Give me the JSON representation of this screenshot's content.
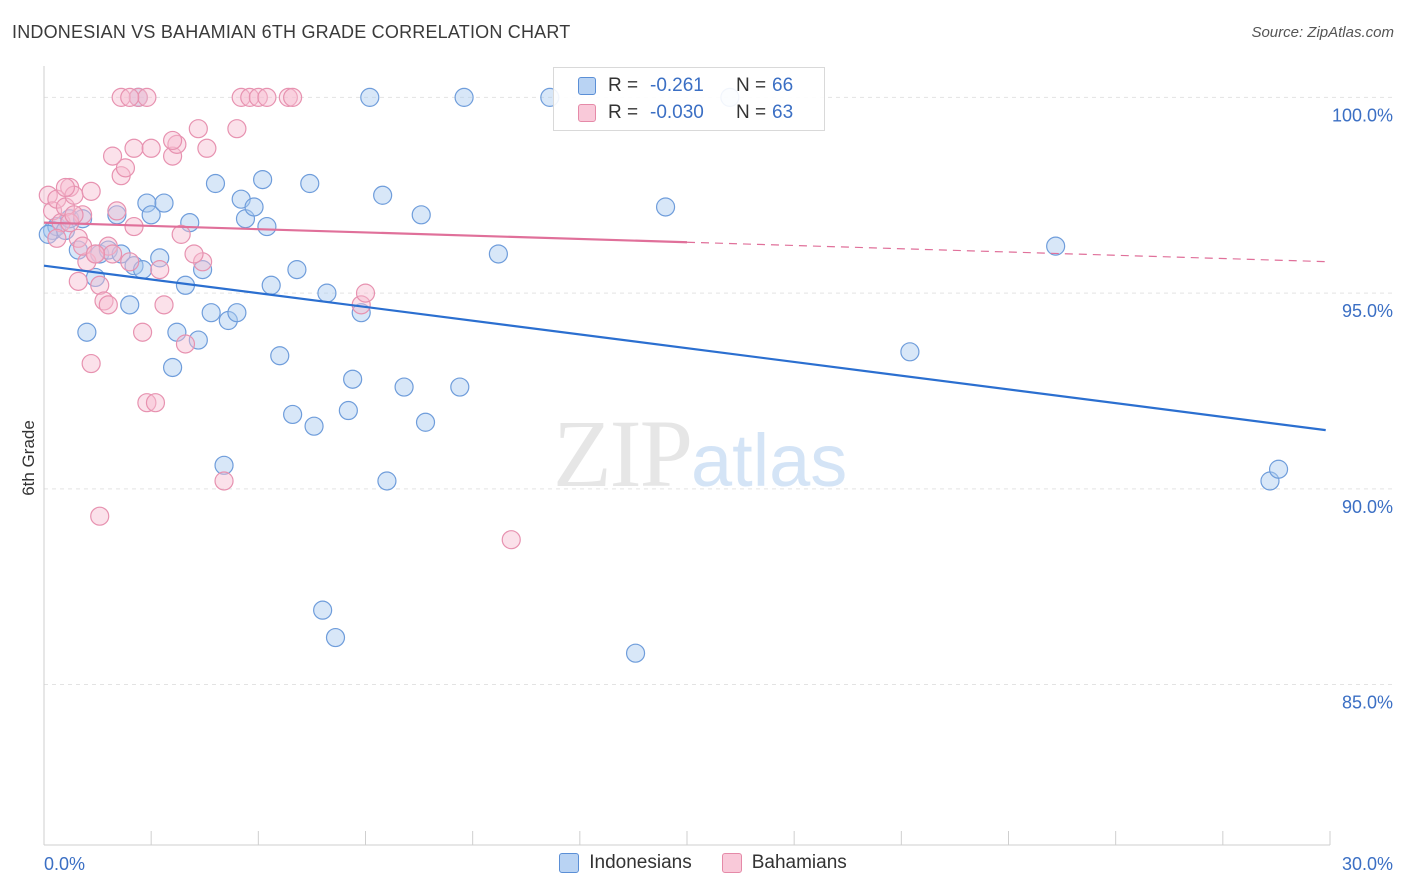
{
  "title": "INDONESIAN VS BAHAMIAN 6TH GRADE CORRELATION CHART",
  "source": "Source: ZipAtlas.com",
  "watermark": {
    "zip": "ZIP",
    "atlas": "atlas"
  },
  "legend": {
    "rows": [
      {
        "r_label": "R =",
        "r_value": "-0.261",
        "n_label": "N =",
        "n_value": "66"
      },
      {
        "r_label": "R =",
        "r_value": "-0.030",
        "n_label": "N =",
        "n_value": "63"
      }
    ]
  },
  "colors": {
    "blue_fill": "#a9c9f0",
    "blue_stroke": "#5b8fd6",
    "blue_line": "#2b6fd0",
    "pink_fill": "#f7bcd0",
    "pink_stroke": "#e58aa8",
    "pink_line": "#e0709a",
    "value_text": "#3b6fc4",
    "grid": "#e3e3e3"
  },
  "chart_data": {
    "type": "scatter",
    "title": "INDONESIAN VS BAHAMIAN 6TH GRADE CORRELATION CHART",
    "xlabel": "",
    "ylabel": "6th Grade",
    "xlim": [
      0,
      30
    ],
    "ylim": [
      80.9,
      100.7
    ],
    "x_tick_labels": [
      "0.0%",
      "30.0%"
    ],
    "y_ticks": [
      85,
      90,
      95,
      100
    ],
    "y_tick_labels": [
      "85.0%",
      "90.0%",
      "95.0%",
      "100.0%"
    ],
    "grid": true,
    "legend_position": "bottom-center",
    "series": [
      {
        "name": "Indonesians",
        "color": "#a9c9f0",
        "trend": {
          "x": [
            0,
            29.9
          ],
          "y": [
            95.7,
            91.5
          ],
          "dashed_from": null
        },
        "points": [
          [
            0.2,
            96.6
          ],
          [
            0.3,
            96.7
          ],
          [
            0.5,
            96.6
          ],
          [
            0.6,
            96.9
          ],
          [
            0.8,
            96.1
          ],
          [
            0.9,
            96.9
          ],
          [
            1.0,
            94.0
          ],
          [
            1.2,
            95.4
          ],
          [
            1.3,
            96.0
          ],
          [
            1.5,
            96.1
          ],
          [
            1.7,
            97.0
          ],
          [
            1.8,
            96.0
          ],
          [
            2.0,
            94.7
          ],
          [
            2.1,
            95.7
          ],
          [
            2.3,
            95.6
          ],
          [
            2.4,
            97.3
          ],
          [
            2.5,
            97.0
          ],
          [
            2.7,
            95.9
          ],
          [
            2.8,
            97.3
          ],
          [
            3.0,
            93.1
          ],
          [
            3.1,
            94.0
          ],
          [
            3.3,
            95.2
          ],
          [
            3.4,
            96.8
          ],
          [
            3.6,
            93.8
          ],
          [
            3.7,
            95.6
          ],
          [
            3.9,
            94.5
          ],
          [
            4.0,
            97.8
          ],
          [
            4.2,
            90.6
          ],
          [
            4.3,
            94.3
          ],
          [
            4.5,
            94.5
          ],
          [
            4.6,
            97.4
          ],
          [
            4.7,
            96.9
          ],
          [
            4.9,
            97.2
          ],
          [
            5.1,
            97.9
          ],
          [
            5.2,
            96.7
          ],
          [
            5.3,
            95.2
          ],
          [
            5.5,
            93.4
          ],
          [
            5.8,
            91.9
          ],
          [
            5.9,
            95.6
          ],
          [
            6.2,
            97.8
          ],
          [
            6.3,
            91.6
          ],
          [
            6.6,
            95.0
          ],
          [
            6.5,
            86.9
          ],
          [
            6.8,
            86.2
          ],
          [
            7.1,
            92.0
          ],
          [
            7.2,
            92.8
          ],
          [
            7.4,
            94.5
          ],
          [
            7.6,
            100.0
          ],
          [
            7.9,
            97.5
          ],
          [
            8.0,
            90.2
          ],
          [
            8.4,
            92.6
          ],
          [
            8.8,
            97.0
          ],
          [
            8.9,
            91.7
          ],
          [
            9.7,
            92.6
          ],
          [
            9.8,
            100.0
          ],
          [
            10.6,
            96.0
          ],
          [
            13.8,
            85.8
          ],
          [
            14.5,
            97.2
          ],
          [
            16.0,
            100.0
          ],
          [
            20.2,
            93.5
          ],
          [
            23.6,
            96.2
          ],
          [
            28.6,
            90.2
          ],
          [
            28.8,
            90.5
          ],
          [
            11.8,
            100.0
          ],
          [
            2.2,
            100.0
          ],
          [
            0.1,
            96.5
          ]
        ]
      },
      {
        "name": "Bahamians",
        "color": "#f7bcd0",
        "trend": {
          "x": [
            0,
            15.0
          ],
          "y": [
            96.8,
            96.3
          ],
          "dashed_to": [
            30,
            95.8
          ]
        },
        "points": [
          [
            0.1,
            97.5
          ],
          [
            0.2,
            97.1
          ],
          [
            0.3,
            97.4
          ],
          [
            0.4,
            96.8
          ],
          [
            0.5,
            97.2
          ],
          [
            0.6,
            97.7
          ],
          [
            0.7,
            97.5
          ],
          [
            0.8,
            96.4
          ],
          [
            0.8,
            95.3
          ],
          [
            0.9,
            97.0
          ],
          [
            1.0,
            95.8
          ],
          [
            1.1,
            97.6
          ],
          [
            1.2,
            96.0
          ],
          [
            1.3,
            95.2
          ],
          [
            1.4,
            94.8
          ],
          [
            1.5,
            96.2
          ],
          [
            1.6,
            96.0
          ],
          [
            1.7,
            97.1
          ],
          [
            1.8,
            98.0
          ],
          [
            1.9,
            98.2
          ],
          [
            2.0,
            95.8
          ],
          [
            2.1,
            98.7
          ],
          [
            2.2,
            100.0
          ],
          [
            2.3,
            94.0
          ],
          [
            2.4,
            92.2
          ],
          [
            2.5,
            98.7
          ],
          [
            2.6,
            92.2
          ],
          [
            2.7,
            95.6
          ],
          [
            2.8,
            94.7
          ],
          [
            3.0,
            98.5
          ],
          [
            3.1,
            98.8
          ],
          [
            3.2,
            96.5
          ],
          [
            3.3,
            93.7
          ],
          [
            3.6,
            99.2
          ],
          [
            3.7,
            95.8
          ],
          [
            3.8,
            98.7
          ],
          [
            4.2,
            90.2
          ],
          [
            4.5,
            99.2
          ],
          [
            4.6,
            100.0
          ],
          [
            4.8,
            100.0
          ],
          [
            5.0,
            100.0
          ],
          [
            5.2,
            100.0
          ],
          [
            5.7,
            100.0
          ],
          [
            5.8,
            100.0
          ],
          [
            7.4,
            94.7
          ],
          [
            7.5,
            95.0
          ],
          [
            10.9,
            88.7
          ],
          [
            1.3,
            89.3
          ],
          [
            1.1,
            93.2
          ],
          [
            0.6,
            96.8
          ],
          [
            0.9,
            96.2
          ],
          [
            1.5,
            94.7
          ],
          [
            2.4,
            100.0
          ],
          [
            3.0,
            98.9
          ],
          [
            1.8,
            100.0
          ],
          [
            2.0,
            100.0
          ],
          [
            0.3,
            96.4
          ],
          [
            0.5,
            97.7
          ],
          [
            1.2,
            96.0
          ],
          [
            0.7,
            97.0
          ],
          [
            1.6,
            98.5
          ],
          [
            2.1,
            96.7
          ],
          [
            3.5,
            96.0
          ]
        ]
      }
    ]
  },
  "bottom_legend": {
    "items": [
      "Indonesians",
      "Bahamians"
    ]
  }
}
